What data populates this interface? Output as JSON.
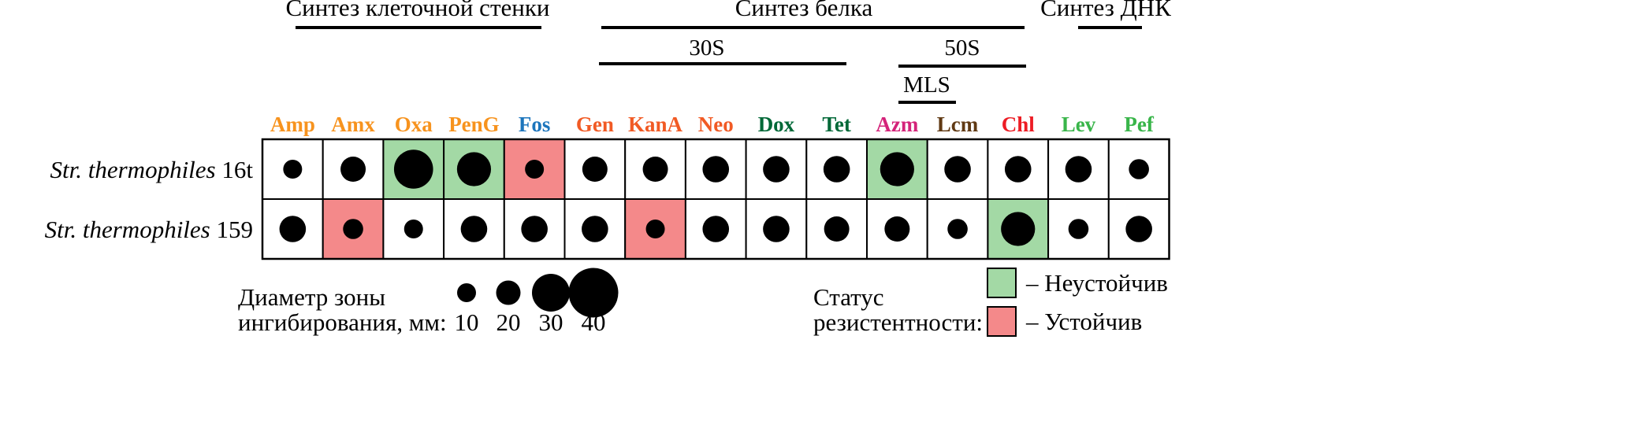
{
  "chart_data": {
    "type": "table",
    "groups": [
      {
        "label": "Синтез клеточной стенки",
        "from": 0,
        "to": 4
      },
      {
        "label": "Синтез белка",
        "from": 5,
        "to": 12
      },
      {
        "label": "Синтез ДНК",
        "from": 13,
        "to": 14
      }
    ],
    "subgroups": [
      {
        "label": "30S",
        "from": 5,
        "to": 9
      },
      {
        "label": "50S",
        "from": 10,
        "to": 12
      },
      {
        "label": "MLS",
        "from": 10,
        "to": 11
      }
    ],
    "antibiotics": [
      {
        "name": "Amp",
        "color": "#f7931e"
      },
      {
        "name": "Amx",
        "color": "#f7931e"
      },
      {
        "name": "Oxa",
        "color": "#f7931e"
      },
      {
        "name": "PenG",
        "color": "#f7931e"
      },
      {
        "name": "Fos",
        "color": "#1c75bc"
      },
      {
        "name": "Gen",
        "color": "#f15a24"
      },
      {
        "name": "KanA",
        "color": "#f15a24"
      },
      {
        "name": "Neo",
        "color": "#f15a24"
      },
      {
        "name": "Dox",
        "color": "#006837"
      },
      {
        "name": "Tet",
        "color": "#006837"
      },
      {
        "name": "Azm",
        "color": "#d4237a"
      },
      {
        "name": "Lcm",
        "color": "#603913"
      },
      {
        "name": "Chl",
        "color": "#ed1c24"
      },
      {
        "name": "Lev",
        "color": "#39b54a"
      },
      {
        "name": "Pef",
        "color": "#39b54a"
      }
    ],
    "strains": [
      {
        "italic": "Str. thermophiles",
        "suffix": "16t",
        "diameters": [
          15,
          20,
          31,
          27,
          15,
          20,
          20,
          21,
          21,
          21,
          27,
          21,
          21,
          21,
          16
        ],
        "status": [
          "",
          "",
          "S",
          "S",
          "R",
          "",
          "",
          "",
          "",
          "",
          "S",
          "",
          "",
          "",
          ""
        ]
      },
      {
        "italic": "Str. thermophiles",
        "suffix": "159",
        "diameters": [
          21,
          16,
          15,
          21,
          21,
          21,
          15,
          21,
          21,
          20,
          20,
          16,
          27,
          16,
          21
        ],
        "status": [
          "",
          "R",
          "",
          "",
          "",
          "",
          "R",
          "",
          "",
          "",
          "",
          "",
          "S",
          "",
          ""
        ]
      }
    ],
    "size_legend": {
      "title_lines": [
        "Диаметр зоны",
        "ингибирования, мм:"
      ],
      "values": [
        10,
        20,
        30,
        40
      ]
    },
    "status_legend": {
      "title_lines": [
        "Статус",
        "резистентности:"
      ],
      "items": [
        {
          "code": "S",
          "label": "– Неустойчив",
          "color": "#a3d9a5"
        },
        {
          "code": "R",
          "label": "– Устойчив",
          "color": "#f4898a"
        }
      ]
    }
  }
}
